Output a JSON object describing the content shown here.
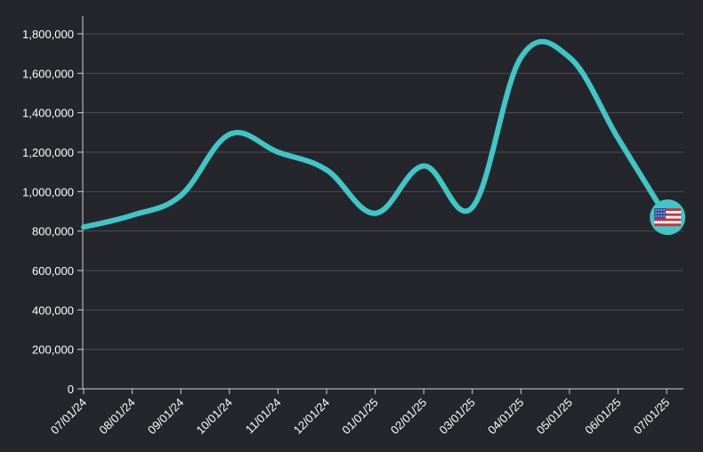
{
  "chart_data": {
    "type": "line",
    "title": "",
    "xlabel": "",
    "ylabel": "",
    "grid": true,
    "legend": "none",
    "ylim": [
      0,
      1800000
    ],
    "x_ticks": [
      "07/01/24",
      "08/01/24",
      "09/01/24",
      "10/01/24",
      "11/01/24",
      "12/01/24",
      "01/01/25",
      "02/01/25",
      "03/01/25",
      "04/01/25",
      "05/01/25",
      "06/01/25",
      "07/01/25"
    ],
    "y_ticks": [
      {
        "value": 0,
        "label": "0"
      },
      {
        "value": 200000,
        "label": "200,000"
      },
      {
        "value": 400000,
        "label": "400,000"
      },
      {
        "value": 600000,
        "label": "600,000"
      },
      {
        "value": 800000,
        "label": "800,000"
      },
      {
        "value": 1000000,
        "label": "1,000,000"
      },
      {
        "value": 1200000,
        "label": "1,200,000"
      },
      {
        "value": 1400000,
        "label": "1,400,000"
      },
      {
        "value": 1600000,
        "label": "1,600,000"
      },
      {
        "value": 1800000,
        "label": "1,800,000"
      }
    ],
    "series": [
      {
        "color": "#3fc6c6",
        "marker": "us-flag-icon",
        "points": [
          {
            "x": "07/01/24",
            "y": 820000
          },
          {
            "x": "08/01/24",
            "y": 880000
          },
          {
            "x": "09/01/24",
            "y": 980000
          },
          {
            "x": "10/01/24",
            "y": 1290000
          },
          {
            "x": "11/01/24",
            "y": 1200000
          },
          {
            "x": "12/01/24",
            "y": 1110000
          },
          {
            "x": "01/01/25",
            "y": 890000
          },
          {
            "x": "02/01/25",
            "y": 1130000
          },
          {
            "x": "03/01/25",
            "y": 920000
          },
          {
            "x": "04/01/25",
            "y": 1680000
          },
          {
            "x": "05/01/25",
            "y": 1680000
          },
          {
            "x": "06/01/25",
            "y": 1270000
          },
          {
            "x": "07/01/25",
            "y": 870000
          }
        ]
      }
    ]
  },
  "colors": {
    "background": "#25262b",
    "line": "#3fc6c6",
    "grid": "#4a4b50",
    "axis": "#d0d0d0",
    "text": "#ffffff"
  }
}
